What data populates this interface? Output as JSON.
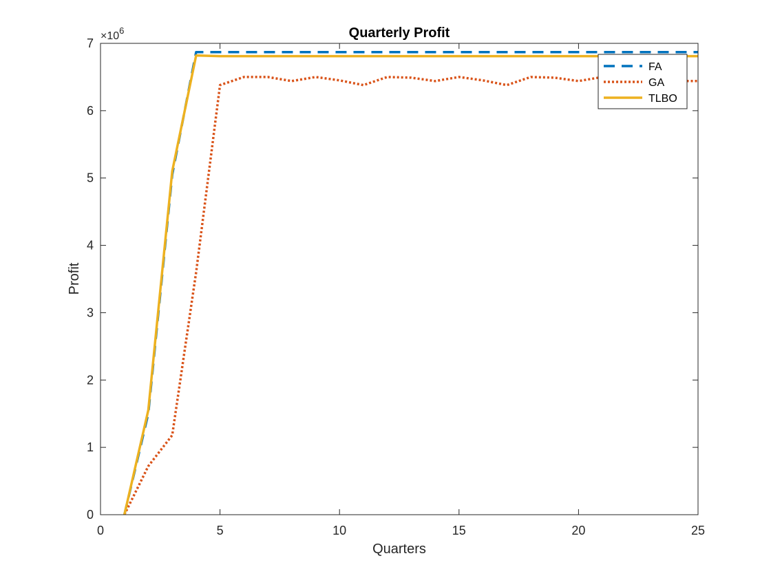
{
  "chart_data": {
    "type": "line",
    "title": "Quarterly Profit",
    "xlabel": "Quarters",
    "ylabel": "Profit",
    "y_multiplier_base": "×10",
    "y_multiplier_exp": "6",
    "xlim": [
      0,
      25
    ],
    "ylim": [
      0,
      7
    ],
    "xticks": [
      0,
      5,
      10,
      15,
      20,
      25
    ],
    "xtick_labels": [
      "0",
      "5",
      "10",
      "15",
      "20",
      "25"
    ],
    "yticks": [
      0,
      1,
      2,
      3,
      4,
      5,
      6,
      7
    ],
    "ytick_labels": [
      "0",
      "1",
      "2",
      "3",
      "4",
      "5",
      "6",
      "7"
    ],
    "grid": false,
    "legend_position": "top-right",
    "x": [
      1,
      2,
      3,
      4,
      5,
      6,
      7,
      8,
      9,
      10,
      11,
      12,
      13,
      14,
      15,
      16,
      17,
      18,
      19,
      20,
      21,
      22,
      23,
      24,
      25
    ],
    "series": [
      {
        "name": "FA",
        "style": "dashed",
        "color": "#0072BD",
        "values": [
          0,
          1.5,
          5.05,
          6.87,
          6.87,
          6.87,
          6.87,
          6.87,
          6.87,
          6.87,
          6.87,
          6.87,
          6.87,
          6.87,
          6.87,
          6.87,
          6.87,
          6.87,
          6.87,
          6.87,
          6.87,
          6.87,
          6.87,
          6.87,
          6.87
        ]
      },
      {
        "name": "GA",
        "style": "dotted",
        "color": "#D95319",
        "values": [
          0,
          0.72,
          1.18,
          3.6,
          6.38,
          6.5,
          6.5,
          6.44,
          6.5,
          6.45,
          6.38,
          6.5,
          6.49,
          6.44,
          6.5,
          6.45,
          6.38,
          6.5,
          6.49,
          6.44,
          6.5,
          6.44,
          6.44,
          6.44,
          6.44
        ]
      },
      {
        "name": "TLBO",
        "style": "solid",
        "color": "#EDB120",
        "values": [
          0,
          1.55,
          5.1,
          6.82,
          6.81,
          6.81,
          6.81,
          6.81,
          6.81,
          6.81,
          6.81,
          6.81,
          6.81,
          6.81,
          6.81,
          6.81,
          6.81,
          6.81,
          6.81,
          6.81,
          6.81,
          6.81,
          6.81,
          6.81,
          6.81
        ]
      }
    ]
  }
}
